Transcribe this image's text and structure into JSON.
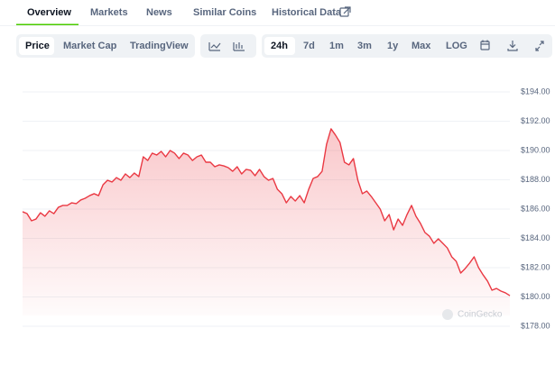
{
  "tabs": [
    "Overview",
    "Markets",
    "News",
    "Similar Coins",
    "Historical Data"
  ],
  "chart_modes": [
    "Price",
    "Market Cap",
    "TradingView"
  ],
  "ranges": [
    "24h",
    "7d",
    "1m",
    "3m",
    "1y",
    "Max",
    "LOG"
  ],
  "watermark": "CoinGecko",
  "chart_data": {
    "type": "area",
    "color": "#ea3943",
    "grid": true,
    "ylim": [
      178,
      194
    ],
    "yticks": [
      {
        "value": 178,
        "label": "$178.00"
      },
      {
        "value": 180,
        "label": "$180.00"
      },
      {
        "value": 182,
        "label": "$182.00"
      },
      {
        "value": 184,
        "label": "$184.00"
      },
      {
        "value": 186,
        "label": "$186.00"
      },
      {
        "value": 188,
        "label": "$188.00"
      },
      {
        "value": 190,
        "label": "$190.00"
      },
      {
        "value": 192,
        "label": "$192.00"
      },
      {
        "value": 194,
        "label": "$194.00"
      }
    ],
    "values": [
      185.82,
      185.69,
      185.2,
      185.32,
      185.75,
      185.51,
      185.88,
      185.69,
      186.12,
      186.25,
      186.25,
      186.43,
      186.37,
      186.62,
      186.74,
      186.92,
      187.05,
      186.92,
      187.66,
      187.97,
      187.85,
      188.15,
      187.97,
      188.4,
      188.15,
      188.46,
      188.22,
      189.57,
      189.32,
      189.82,
      189.69,
      189.94,
      189.57,
      190.0,
      189.82,
      189.45,
      189.82,
      189.69,
      189.32,
      189.57,
      189.69,
      189.2,
      189.2,
      188.89,
      189.02,
      188.95,
      188.83,
      188.58,
      188.89,
      188.4,
      188.71,
      188.65,
      188.28,
      188.71,
      188.22,
      187.97,
      188.09,
      187.35,
      187.05,
      186.43,
      186.86,
      186.55,
      186.92,
      186.43,
      187.35,
      188.09,
      188.22,
      188.58,
      190.43,
      191.48,
      191.05,
      190.55,
      189.2,
      189.02,
      189.45,
      187.97,
      187.05,
      187.23,
      186.86,
      186.43,
      186.0,
      185.2,
      185.63,
      184.58,
      185.32,
      184.89,
      185.63,
      186.25,
      185.51,
      185.02,
      184.4,
      184.15,
      183.66,
      183.97,
      183.66,
      183.35,
      182.74,
      182.43,
      181.63,
      181.94,
      182.31,
      182.74,
      182.0,
      181.51,
      181.08,
      180.46,
      180.58,
      180.4,
      180.28,
      180.09
    ]
  }
}
